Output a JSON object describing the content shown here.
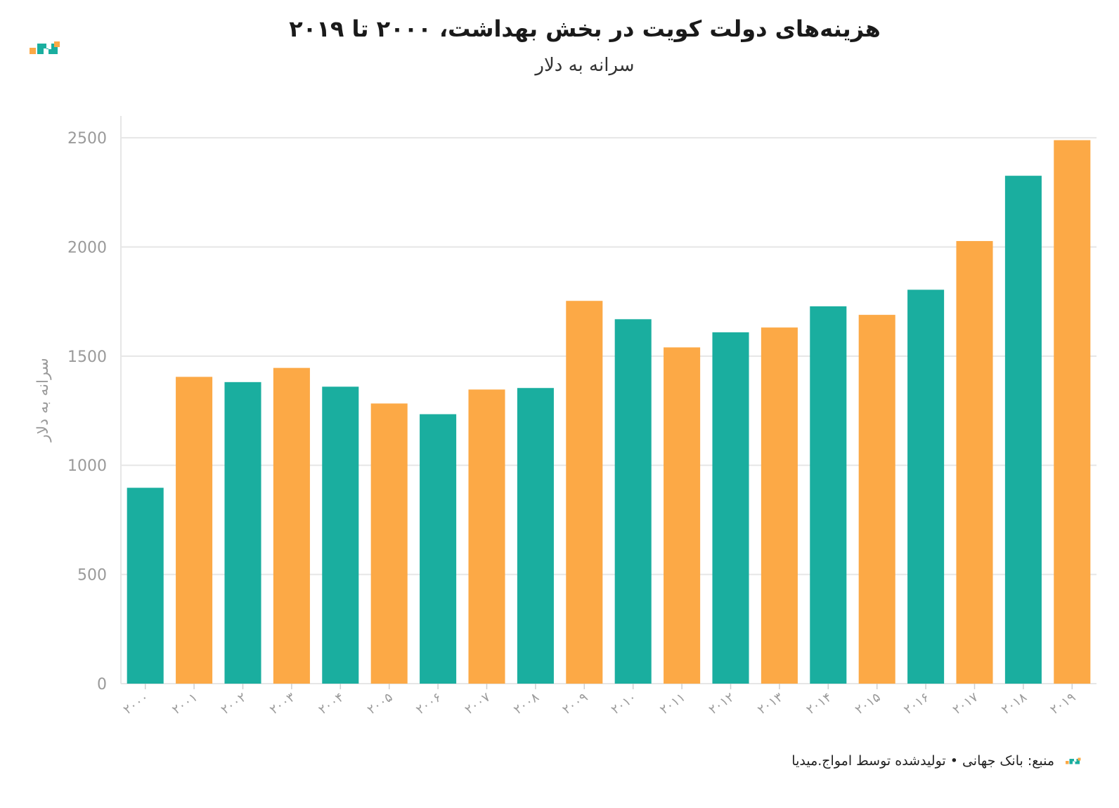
{
  "title": "هزینه‌های دولت کویت در بخش بهداشت، ۲۰۰۰ تا ۲۰۱۹",
  "subtitle": "سرانه به دلار",
  "footer": {
    "source": "منبع: بانک جهانی • تولیدشده توسط امواج.میدیا"
  },
  "logo_icon": "amwaj-logo-icon",
  "colors": {
    "teal": "#1aae9f",
    "orange": "#fca946",
    "grid": "#e6e6e6",
    "axis_text": "#9a9a9a"
  },
  "chart_data": {
    "type": "bar",
    "ylabel": "سرانه به دلار",
    "ylim": [
      0,
      2600
    ],
    "yticks": [
      0,
      500,
      1000,
      1500,
      2000,
      2500
    ],
    "grid": true,
    "categories": [
      "۲۰۰۰",
      "۲۰۰۱",
      "۲۰۰۲",
      "۲۰۰۳",
      "۲۰۰۴",
      "۲۰۰۵",
      "۲۰۰۶",
      "۲۰۰۷",
      "۲۰۰۸",
      "۲۰۰۹",
      "۲۰۱۰",
      "۲۰۱۱",
      "۲۰۱۲",
      "۲۰۱۳",
      "۲۰۱۴",
      "۲۰۱۵",
      "۲۰۱۶",
      "۲۰۱۷",
      "۲۰۱۸",
      "۲۰۱۹"
    ],
    "values": [
      897,
      1405,
      1381,
      1446,
      1360,
      1283,
      1234,
      1347,
      1354,
      1753,
      1669,
      1540,
      1609,
      1631,
      1728,
      1689,
      1804,
      2027,
      2326,
      2489
    ],
    "bar_colors": [
      "#1aae9f",
      "#fca946",
      "#1aae9f",
      "#fca946",
      "#1aae9f",
      "#fca946",
      "#1aae9f",
      "#fca946",
      "#1aae9f",
      "#fca946",
      "#1aae9f",
      "#fca946",
      "#1aae9f",
      "#fca946",
      "#1aae9f",
      "#fca946",
      "#1aae9f",
      "#fca946",
      "#1aae9f",
      "#fca946"
    ]
  }
}
